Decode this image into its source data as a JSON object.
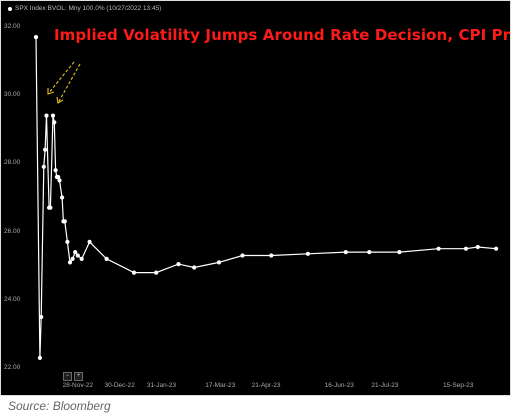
{
  "legend": {
    "text": "SPX Index BVOL: Mny 100.0% (10/27/2022 13:45)"
  },
  "source": "Source: Bloomberg",
  "colors": {
    "background": "#000000",
    "line": "#ffffff",
    "title": "#ff1a1a",
    "arrow": "#e3c21b",
    "axis_text": "#aaaaaa"
  },
  "chart_data": {
    "type": "line",
    "title": "Implied Volatility Jumps Around Rate Decision, CPI Print",
    "xlabel": "",
    "ylabel": "",
    "ylim": [
      21.8,
      32.2
    ],
    "yticks": [
      "32.00",
      "30.00",
      "28.00",
      "26.00",
      "24.00",
      "22.00"
    ],
    "ytick_values": [
      32,
      30,
      28,
      26,
      24,
      22
    ],
    "xticks": [
      "28-Nov-22",
      "30-Dec-22",
      "31-Jan-23",
      "17-Mar-23",
      "21-Apr-23",
      "16-Jun-23",
      "21-Jul-23",
      "15-Sep-23"
    ],
    "xtick_dates": [
      "2022-11-28",
      "2022-12-30",
      "2023-01-31",
      "2023-03-17",
      "2023-04-21",
      "2023-06-16",
      "2023-07-21",
      "2023-09-15"
    ],
    "xlim": [
      "2022-10-27",
      "2023-10-17"
    ],
    "grid": false,
    "legend_position": "top-left",
    "annotations": [
      "two yellow dashed arrows pointing at the early-November spikes"
    ],
    "series": [
      {
        "name": "SPX Index BVOL",
        "x": [
          "2022-10-27",
          "2022-10-30",
          "2022-10-31",
          "2022-11-02",
          "2022-11-03",
          "2022-11-04",
          "2022-11-06",
          "2022-11-07",
          "2022-11-09",
          "2022-11-10",
          "2022-11-11",
          "2022-11-12",
          "2022-11-13",
          "2022-11-14",
          "2022-11-16",
          "2022-11-17",
          "2022-11-18",
          "2022-11-20",
          "2022-11-22",
          "2022-11-24",
          "2022-11-26",
          "2022-11-28",
          "2022-12-01",
          "2022-12-07",
          "2022-12-20",
          "2023-01-10",
          "2023-01-27",
          "2023-02-13",
          "2023-02-25",
          "2023-03-16",
          "2023-04-03",
          "2023-04-25",
          "2023-05-23",
          "2023-06-21",
          "2023-07-09",
          "2023-08-01",
          "2023-08-31",
          "2023-09-21",
          "2023-09-30",
          "2023-10-14"
        ],
        "values": [
          31.7,
          22.3,
          23.5,
          27.9,
          28.4,
          29.4,
          26.7,
          26.7,
          29.4,
          29.2,
          27.8,
          27.6,
          27.6,
          27.5,
          27.0,
          26.3,
          26.3,
          25.7,
          25.1,
          25.2,
          25.4,
          25.3,
          25.2,
          25.7,
          25.2,
          24.8,
          24.8,
          25.05,
          24.95,
          25.1,
          25.3,
          25.3,
          25.35,
          25.4,
          25.4,
          25.4,
          25.5,
          25.5,
          25.55,
          25.5
        ]
      }
    ]
  }
}
